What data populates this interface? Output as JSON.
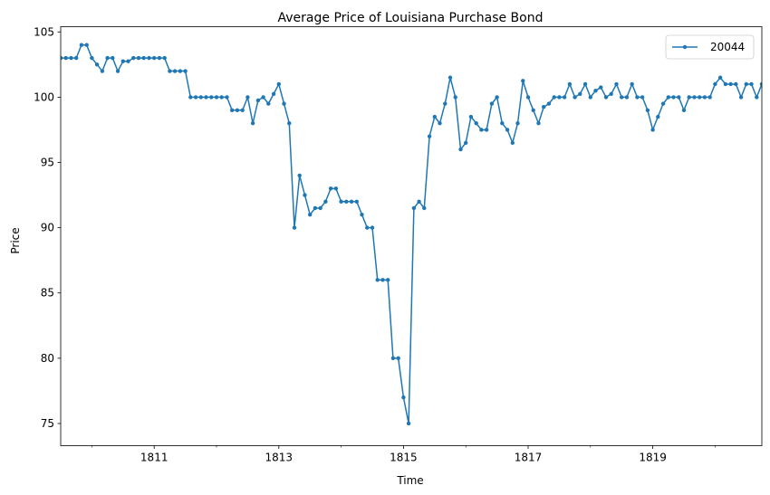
{
  "chart_data": {
    "type": "line",
    "title": "Average Price of Louisiana Purchase Bond",
    "xlabel": "Time",
    "ylabel": "Price",
    "xlim": [
      1809.5,
      1820.75
    ],
    "ylim": [
      73.3,
      105.4
    ],
    "grid": false,
    "legend_position": "top-right",
    "x_ticks": [
      1811,
      1813,
      1815,
      1817,
      1819
    ],
    "x_minor_ticks": [
      1810,
      1812,
      1814,
      1816,
      1818,
      1820
    ],
    "y_ticks": [
      75,
      80,
      85,
      90,
      95,
      100,
      105
    ],
    "series": [
      {
        "name": "20044",
        "color": "#1f77b4",
        "marker": "circle",
        "points": [
          [
            1809.5,
            103.0
          ],
          [
            1809.583,
            103.0
          ],
          [
            1809.667,
            103.0
          ],
          [
            1809.75,
            103.0
          ],
          [
            1809.833,
            104.0
          ],
          [
            1809.917,
            104.0
          ],
          [
            1810.0,
            103.0
          ],
          [
            1810.083,
            102.5
          ],
          [
            1810.167,
            102.0
          ],
          [
            1810.25,
            103.0
          ],
          [
            1810.333,
            103.0
          ],
          [
            1810.417,
            102.0
          ],
          [
            1810.5,
            102.75
          ],
          [
            1810.583,
            102.75
          ],
          [
            1810.667,
            103.0
          ],
          [
            1810.75,
            103.0
          ],
          [
            1810.833,
            103.0
          ],
          [
            1810.917,
            103.0
          ],
          [
            1811.0,
            103.0
          ],
          [
            1811.083,
            103.0
          ],
          [
            1811.167,
            103.0
          ],
          [
            1811.25,
            102.0
          ],
          [
            1811.333,
            102.0
          ],
          [
            1811.417,
            102.0
          ],
          [
            1811.5,
            102.0
          ],
          [
            1811.583,
            100.0
          ],
          [
            1811.667,
            100.0
          ],
          [
            1811.75,
            100.0
          ],
          [
            1811.833,
            100.0
          ],
          [
            1811.917,
            100.0
          ],
          [
            1812.0,
            100.0
          ],
          [
            1812.083,
            100.0
          ],
          [
            1812.167,
            100.0
          ],
          [
            1812.25,
            99.0
          ],
          [
            1812.333,
            99.0
          ],
          [
            1812.417,
            99.0
          ],
          [
            1812.5,
            100.0
          ],
          [
            1812.583,
            98.0
          ],
          [
            1812.667,
            99.75
          ],
          [
            1812.75,
            100.0
          ],
          [
            1812.833,
            99.5
          ],
          [
            1812.917,
            100.25
          ],
          [
            1813.0,
            101.0
          ],
          [
            1813.083,
            99.5
          ],
          [
            1813.167,
            98.0
          ],
          [
            1813.25,
            90.0
          ],
          [
            1813.333,
            94.0
          ],
          [
            1813.417,
            92.5
          ],
          [
            1813.5,
            91.0
          ],
          [
            1813.583,
            91.5
          ],
          [
            1813.667,
            91.5
          ],
          [
            1813.75,
            92.0
          ],
          [
            1813.833,
            93.0
          ],
          [
            1813.917,
            93.0
          ],
          [
            1814.0,
            92.0
          ],
          [
            1814.083,
            92.0
          ],
          [
            1814.167,
            92.0
          ],
          [
            1814.25,
            92.0
          ],
          [
            1814.333,
            91.0
          ],
          [
            1814.417,
            90.0
          ],
          [
            1814.5,
            90.0
          ],
          [
            1814.583,
            86.0
          ],
          [
            1814.667,
            86.0
          ],
          [
            1814.75,
            86.0
          ],
          [
            1814.833,
            80.0
          ],
          [
            1814.917,
            80.0
          ],
          [
            1815.0,
            77.0
          ],
          [
            1815.083,
            75.0
          ],
          [
            1815.167,
            91.5
          ],
          [
            1815.25,
            92.0
          ],
          [
            1815.333,
            91.5
          ],
          [
            1815.417,
            97.0
          ],
          [
            1815.5,
            98.5
          ],
          [
            1815.583,
            98.0
          ],
          [
            1815.667,
            99.5
          ],
          [
            1815.75,
            101.5
          ],
          [
            1815.833,
            100.0
          ],
          [
            1815.917,
            96.0
          ],
          [
            1816.0,
            96.5
          ],
          [
            1816.083,
            98.5
          ],
          [
            1816.167,
            98.0
          ],
          [
            1816.25,
            97.5
          ],
          [
            1816.333,
            97.5
          ],
          [
            1816.417,
            99.5
          ],
          [
            1816.5,
            100.0
          ],
          [
            1816.583,
            98.0
          ],
          [
            1816.667,
            97.5
          ],
          [
            1816.75,
            96.5
          ],
          [
            1816.833,
            98.0
          ],
          [
            1816.917,
            101.25
          ],
          [
            1817.0,
            100.0
          ],
          [
            1817.083,
            99.0
          ],
          [
            1817.167,
            98.0
          ],
          [
            1817.25,
            99.25
          ],
          [
            1817.333,
            99.5
          ],
          [
            1817.417,
            100.0
          ],
          [
            1817.5,
            100.0
          ],
          [
            1817.583,
            100.0
          ],
          [
            1817.667,
            101.0
          ],
          [
            1817.75,
            100.0
          ],
          [
            1817.833,
            100.25
          ],
          [
            1817.917,
            101.0
          ],
          [
            1818.0,
            100.0
          ],
          [
            1818.083,
            100.5
          ],
          [
            1818.167,
            100.75
          ],
          [
            1818.25,
            100.0
          ],
          [
            1818.333,
            100.25
          ],
          [
            1818.417,
            101.0
          ],
          [
            1818.5,
            100.0
          ],
          [
            1818.583,
            100.0
          ],
          [
            1818.667,
            101.0
          ],
          [
            1818.75,
            100.0
          ],
          [
            1818.833,
            100.0
          ],
          [
            1818.917,
            99.0
          ],
          [
            1819.0,
            97.5
          ],
          [
            1819.083,
            98.5
          ],
          [
            1819.167,
            99.5
          ],
          [
            1819.25,
            100.0
          ],
          [
            1819.333,
            100.0
          ],
          [
            1819.417,
            100.0
          ],
          [
            1819.5,
            99.0
          ],
          [
            1819.583,
            100.0
          ],
          [
            1819.667,
            100.0
          ],
          [
            1819.75,
            100.0
          ],
          [
            1819.833,
            100.0
          ],
          [
            1819.917,
            100.0
          ],
          [
            1820.0,
            101.0
          ],
          [
            1820.083,
            101.5
          ],
          [
            1820.167,
            101.0
          ],
          [
            1820.25,
            101.0
          ],
          [
            1820.333,
            101.0
          ],
          [
            1820.417,
            100.0
          ],
          [
            1820.5,
            101.0
          ],
          [
            1820.583,
            101.0
          ],
          [
            1820.667,
            100.0
          ],
          [
            1820.75,
            101.0
          ]
        ]
      }
    ]
  }
}
